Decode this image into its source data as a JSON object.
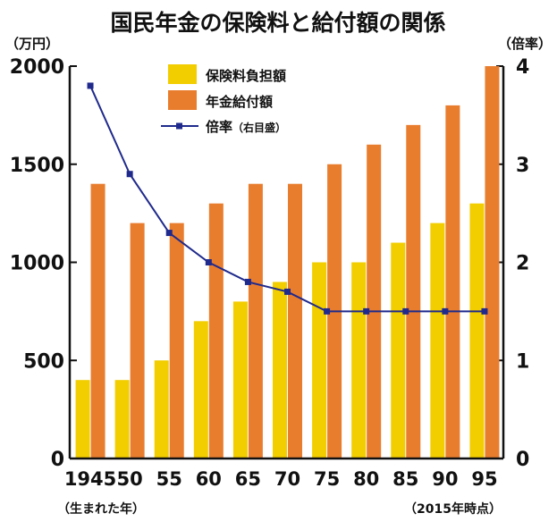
{
  "chart_data": {
    "type": "bar",
    "title": "国民年金の保険料と給付額の関係",
    "left_unit": "（万円）",
    "right_unit": "（倍率）",
    "x_note_left": "（生まれた年）",
    "x_note_right": "（2015年時点）",
    "categories": [
      "1945",
      "50",
      "55",
      "60",
      "65",
      "70",
      "75",
      "80",
      "85",
      "90",
      "95"
    ],
    "ylim": [
      0,
      2000
    ],
    "yticks": [
      "0",
      "500",
      "1000",
      "1500",
      "2000"
    ],
    "y2lim": [
      0,
      4
    ],
    "y2ticks": [
      "0",
      "1",
      "2",
      "3",
      "4"
    ],
    "series": [
      {
        "name": "保険料負担額",
        "type": "bar",
        "axis": "left",
        "color": "#f2cd00",
        "values": [
          400,
          400,
          500,
          700,
          800,
          900,
          1000,
          1000,
          1100,
          1200,
          1300
        ]
      },
      {
        "name": "年金給付額",
        "type": "bar",
        "axis": "left",
        "color": "#e97d2e",
        "values": [
          1400,
          1200,
          1200,
          1300,
          1400,
          1400,
          1500,
          1600,
          1700,
          1800,
          2000
        ]
      },
      {
        "name": "倍率",
        "name_note": "（右目盛）",
        "type": "line",
        "axis": "right",
        "color": "#1f2a8c",
        "values": [
          3.8,
          2.9,
          2.3,
          2.0,
          1.8,
          1.7,
          1.5,
          1.5,
          1.5,
          1.5,
          1.5
        ]
      }
    ],
    "legend_position": "top-left",
    "grid": false
  }
}
